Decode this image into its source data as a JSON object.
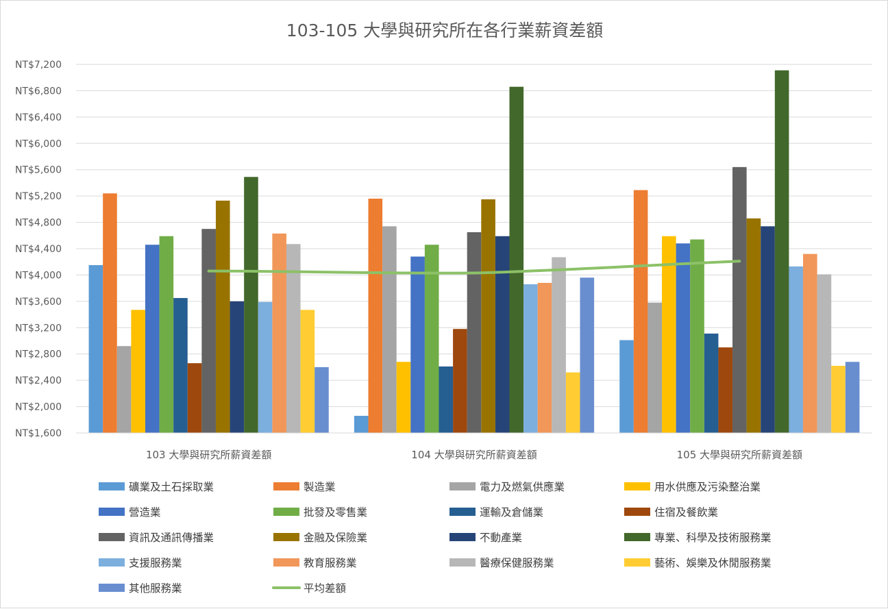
{
  "chart_data": {
    "type": "bar",
    "title": "103-105 大學與研究所在各行業薪資差額",
    "xlabel": "",
    "ylabel": "",
    "ylim": [
      1600,
      7200
    ],
    "ytick_step": 400,
    "ytick_labels": [
      "NT$1,600",
      "NT$2,000",
      "NT$2,400",
      "NT$2,800",
      "NT$3,200",
      "NT$3,600",
      "NT$4,000",
      "NT$4,400",
      "NT$4,800",
      "NT$5,200",
      "NT$5,600",
      "NT$6,000",
      "NT$6,400",
      "NT$6,800",
      "NT$7,200"
    ],
    "grid": true,
    "legend_position": "bottom",
    "categories": [
      "103 大學與研究所薪資差額",
      "104 大學與研究所薪資差額",
      "105 大學與研究所薪資差額"
    ],
    "series": [
      {
        "name": "礦業及土石採取業",
        "color": "#5b9bd5",
        "values": [
          4150,
          1860,
          3010
        ]
      },
      {
        "name": "製造業",
        "color": "#ed7d31",
        "values": [
          5240,
          5160,
          5290
        ]
      },
      {
        "name": "電力及燃氣供應業",
        "color": "#a5a5a5",
        "values": [
          2920,
          4740,
          3580
        ]
      },
      {
        "name": "用水供應及污染整治業",
        "color": "#ffc000",
        "values": [
          3470,
          2680,
          4590
        ]
      },
      {
        "name": "營造業",
        "color": "#4472c4",
        "values": [
          4460,
          4280,
          4480
        ]
      },
      {
        "name": "批發及零售業",
        "color": "#70ad47",
        "values": [
          4590,
          4460,
          4540
        ]
      },
      {
        "name": "運輸及倉儲業",
        "color": "#255e91",
        "values": [
          3650,
          2610,
          3110
        ]
      },
      {
        "name": "住宿及餐飲業",
        "color": "#9e480e",
        "values": [
          2660,
          3180,
          2900
        ]
      },
      {
        "name": "資訊及通訊傳播業",
        "color": "#636363",
        "values": [
          4700,
          4650,
          5640
        ]
      },
      {
        "name": "金融及保險業",
        "color": "#997300",
        "values": [
          5130,
          5150,
          4860
        ]
      },
      {
        "name": "不動產業",
        "color": "#264478",
        "values": [
          3600,
          4590,
          4740
        ]
      },
      {
        "name": "專業、科學及技術服務業",
        "color": "#43682b",
        "values": [
          5490,
          6860,
          7110
        ]
      },
      {
        "name": "支援服務業",
        "color": "#7cafdd",
        "values": [
          3590,
          3860,
          4130
        ]
      },
      {
        "name": "教育服務業",
        "color": "#f1975a",
        "values": [
          4630,
          3880,
          4320
        ]
      },
      {
        "name": "醫療保健服務業",
        "color": "#b7b7b7",
        "values": [
          4470,
          4270,
          4010
        ]
      },
      {
        "name": "藝術、娛樂及休閒服務業",
        "color": "#ffcd33",
        "values": [
          3470,
          2520,
          2620
        ]
      },
      {
        "name": "其他服務業",
        "color": "#698ed0",
        "values": [
          2600,
          3960,
          2680
        ]
      }
    ],
    "line_series": {
      "name": "平均差額",
      "color": "#8cc168",
      "values": [
        4060,
        4030,
        4210
      ]
    }
  }
}
